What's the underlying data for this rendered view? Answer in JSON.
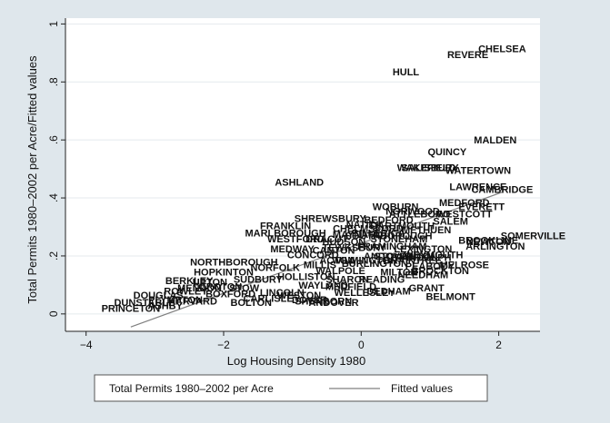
{
  "chart_data": {
    "type": "scatter",
    "title": "",
    "xlabel": "Log Housing Density 1980",
    "ylabel": "Total Permits 1980–2002 per Acre/Fitted values",
    "xlim": [
      -4.3,
      2.6
    ],
    "ylim": [
      -0.06,
      1.02
    ],
    "x_ticks": [
      -4,
      -2,
      0,
      2
    ],
    "x_tick_labels": [
      "−4",
      "−2",
      "0",
      "2"
    ],
    "y_ticks": [
      0,
      0.2,
      0.4,
      0.6,
      0.8,
      1
    ],
    "y_tick_labels": [
      "0",
      ".2",
      ".4",
      ".6",
      ".8",
      "1"
    ],
    "grid": true,
    "legend_position": "bottom",
    "legend": [
      {
        "label": "Total Permits 1980–2002 per Acre",
        "style": "marker-labels"
      },
      {
        "label": "Fitted values",
        "style": "line"
      }
    ],
    "colors": {
      "background": "#dfe7ec",
      "plot": "#ffffff",
      "grid": "#e4eaee",
      "fit_line": "#808080",
      "text": "#111111"
    },
    "series": [
      {
        "name": "Total Permits 1980–2002 per Acre",
        "points": [
          {
            "label": "CHELSEA",
            "x": 2.05,
            "y": 0.915
          },
          {
            "label": "REVERE",
            "x": 1.55,
            "y": 0.895
          },
          {
            "label": "HULL",
            "x": 0.65,
            "y": 0.835
          },
          {
            "label": "MALDEN",
            "x": 1.95,
            "y": 0.6
          },
          {
            "label": "QUINCY",
            "x": 1.25,
            "y": 0.56
          },
          {
            "label": "WAKEFIELD",
            "x": 0.95,
            "y": 0.505
          },
          {
            "label": "SALISBURY",
            "x": 1.0,
            "y": 0.505
          },
          {
            "label": "WATERTOWN",
            "x": 1.7,
            "y": 0.495
          },
          {
            "label": "LAWRENCE",
            "x": 1.7,
            "y": 0.44
          },
          {
            "label": "CAMBRIDGE",
            "x": 2.05,
            "y": 0.43
          },
          {
            "label": "ASHLAND",
            "x": -0.9,
            "y": 0.455
          },
          {
            "label": "MEDFORD",
            "x": 1.5,
            "y": 0.385
          },
          {
            "label": "WOBURN",
            "x": 0.5,
            "y": 0.37
          },
          {
            "label": "EVERETT",
            "x": 1.75,
            "y": 0.37
          },
          {
            "label": "NORWOOD",
            "x": 0.75,
            "y": 0.355
          },
          {
            "label": "ATTLEBORO",
            "x": 0.85,
            "y": 0.345
          },
          {
            "label": "WESTCOTT",
            "x": 1.5,
            "y": 0.345
          },
          {
            "label": "SHREWSBURY",
            "x": -0.45,
            "y": 0.33
          },
          {
            "label": "BEDFORD",
            "x": 0.4,
            "y": 0.325
          },
          {
            "label": "NATICK",
            "x": 0.05,
            "y": 0.31
          },
          {
            "label": "FRANKLIN",
            "x": -1.1,
            "y": 0.305
          },
          {
            "label": "DARTMOUTH",
            "x": 0.6,
            "y": 0.305
          },
          {
            "label": "MARLBOROUGH",
            "x": -1.1,
            "y": 0.28
          },
          {
            "label": "SOUTHBOROUGH",
            "x": 0.4,
            "y": 0.27
          },
          {
            "label": "WESTFORD",
            "x": -0.95,
            "y": 0.26
          },
          {
            "label": "SOMERVILLE",
            "x": 2.5,
            "y": 0.27
          },
          {
            "label": "NEWTON",
            "x": 1.85,
            "y": 0.25
          },
          {
            "label": "BROOKLINE",
            "x": 1.85,
            "y": 0.255
          },
          {
            "label": "ARLINGTON",
            "x": 1.95,
            "y": 0.235
          },
          {
            "label": "MEDWAY",
            "x": -1.0,
            "y": 0.225
          },
          {
            "label": "LEXINGTON",
            "x": 0.9,
            "y": 0.225
          },
          {
            "label": "CANTON",
            "x": -0.4,
            "y": 0.22
          },
          {
            "label": "NORTHBOROUGH",
            "x": -1.85,
            "y": 0.18
          },
          {
            "label": "ANDOVER",
            "x": 0.4,
            "y": 0.2
          },
          {
            "label": "MELROSE",
            "x": 1.5,
            "y": 0.17
          },
          {
            "label": "PEABODY",
            "x": 1.0,
            "y": 0.165
          },
          {
            "label": "BROCKTON",
            "x": 1.15,
            "y": 0.15
          },
          {
            "label": "HOPKINTON",
            "x": -2.0,
            "y": 0.145
          },
          {
            "label": "BERKLEY",
            "x": -2.5,
            "y": 0.115
          },
          {
            "label": "NEEDHAM",
            "x": 0.9,
            "y": 0.135
          },
          {
            "label": "BELMONT",
            "x": 1.3,
            "y": 0.06
          },
          {
            "label": "GRANT",
            "x": 0.95,
            "y": 0.09
          },
          {
            "label": "DEDHAM",
            "x": 0.4,
            "y": 0.08
          },
          {
            "label": "SUDBURY",
            "x": -1.5,
            "y": 0.12
          },
          {
            "label": "GROTON",
            "x": -2.05,
            "y": 0.095
          },
          {
            "label": "ROWLEY",
            "x": -2.55,
            "y": 0.08
          },
          {
            "label": "DOUGLAS",
            "x": -2.95,
            "y": 0.065
          },
          {
            "label": "DUNSTABLE",
            "x": -3.15,
            "y": 0.04
          },
          {
            "label": "PRINCETON",
            "x": -3.35,
            "y": 0.02
          },
          {
            "label": "HARVARD",
            "x": -2.45,
            "y": 0.045
          },
          {
            "label": "BOLTON",
            "x": -1.6,
            "y": 0.04
          },
          {
            "label": "CARLISLE",
            "x": -1.35,
            "y": 0.055
          },
          {
            "label": "DOVER",
            "x": -0.75,
            "y": 0.05
          },
          {
            "label": "SHERBORN",
            "x": -0.55,
            "y": 0.045
          },
          {
            "label": "ANDOVER",
            "x": -0.4,
            "y": 0.04
          },
          {
            "label": "WESTON",
            "x": -0.9,
            "y": 0.065
          },
          {
            "label": "LINCOLN",
            "x": -1.15,
            "y": 0.075
          },
          {
            "label": "BOXFORD",
            "x": -1.9,
            "y": 0.07
          },
          {
            "label": "STOW",
            "x": -1.7,
            "y": 0.09
          },
          {
            "label": "HOLLISTON",
            "x": -0.8,
            "y": 0.13
          },
          {
            "label": "UPTON",
            "x": -2.2,
            "y": 0.11
          },
          {
            "label": "MENDON",
            "x": -2.35,
            "y": 0.09
          },
          {
            "label": "NORFOLK",
            "x": -1.25,
            "y": 0.16
          },
          {
            "label": "PLYMPTON",
            "x": -2.7,
            "y": 0.05
          },
          {
            "label": "ASHBY",
            "x": -2.85,
            "y": 0.03
          },
          {
            "label": "MILLIS",
            "x": -0.6,
            "y": 0.17
          },
          {
            "label": "WALPOLE",
            "x": -0.3,
            "y": 0.15
          },
          {
            "label": "SHARON",
            "x": -0.2,
            "y": 0.12
          },
          {
            "label": "MEDFIELD",
            "x": -0.15,
            "y": 0.095
          },
          {
            "label": "READING",
            "x": 0.3,
            "y": 0.12
          },
          {
            "label": "MILTON",
            "x": 0.55,
            "y": 0.145
          },
          {
            "label": "BURLINGTON",
            "x": 0.2,
            "y": 0.175
          },
          {
            "label": "WILMINGTON",
            "x": 0.05,
            "y": 0.185
          },
          {
            "label": "STOUGHTON",
            "x": 0.65,
            "y": 0.2
          },
          {
            "label": "BRAINTREE",
            "x": 0.75,
            "y": 0.185
          },
          {
            "label": "RANDOLPH",
            "x": 0.9,
            "y": 0.195
          },
          {
            "label": "WEYMOUTH",
            "x": 1.05,
            "y": 0.205
          },
          {
            "label": "FRAMINGHAM",
            "x": 0.45,
            "y": 0.235
          },
          {
            "label": "STONEHAM",
            "x": 0.55,
            "y": 0.26
          },
          {
            "label": "HUDSON",
            "x": -0.25,
            "y": 0.25
          },
          {
            "label": "MAYNARD",
            "x": -0.05,
            "y": 0.275
          },
          {
            "label": "ACTON",
            "x": -0.35,
            "y": 0.185
          },
          {
            "label": "CONCORD",
            "x": -0.7,
            "y": 0.205
          },
          {
            "label": "WAYLAND",
            "x": -0.55,
            "y": 0.1
          },
          {
            "label": "WELLESLEY",
            "x": 0.05,
            "y": 0.075
          },
          {
            "label": "TEWKSBURY",
            "x": -0.1,
            "y": 0.23
          },
          {
            "label": "BILLERICA",
            "x": 0.25,
            "y": 0.28
          },
          {
            "label": "CHELMSFORD",
            "x": 0.1,
            "y": 0.295
          },
          {
            "label": "DRACUT",
            "x": -0.5,
            "y": 0.26
          },
          {
            "label": "METHUEN",
            "x": 0.95,
            "y": 0.29
          },
          {
            "label": "SALEM",
            "x": 1.3,
            "y": 0.32
          }
        ]
      },
      {
        "name": "Fitted values",
        "line": [
          {
            "x": -3.35,
            "y": -0.045
          },
          {
            "x": 2.05,
            "y": 0.42
          }
        ]
      }
    ]
  }
}
